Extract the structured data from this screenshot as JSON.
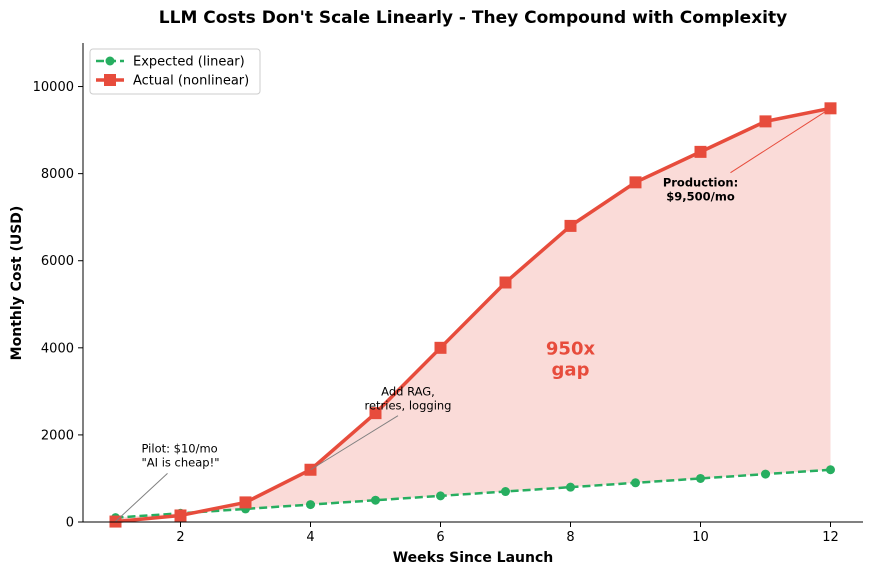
{
  "chart_data": {
    "type": "line",
    "title": "LLM Costs Don't Scale Linearly - They Compound with Complexity",
    "xlabel": "Weeks Since Launch",
    "ylabel": "Monthly Cost (USD)",
    "xlim": [
      0.5,
      12.5
    ],
    "ylim": [
      0,
      11000
    ],
    "xticks": [
      2,
      4,
      6,
      8,
      10,
      12
    ],
    "yticks": [
      0,
      2000,
      4000,
      6000,
      8000,
      10000
    ],
    "grid": false,
    "legend_position": "top-left",
    "x": [
      1,
      2,
      3,
      4,
      5,
      6,
      7,
      8,
      9,
      10,
      11,
      12
    ],
    "series": [
      {
        "name": "Expected (linear)",
        "values": [
          100,
          200,
          300,
          400,
          500,
          600,
          700,
          800,
          900,
          1000,
          1100,
          1200
        ],
        "color": "#27ae60",
        "marker": "circle",
        "line_style": "dashed"
      },
      {
        "name": "Actual (nonlinear)",
        "values": [
          10,
          150,
          450,
          1200,
          2500,
          4000,
          5500,
          6800,
          7800,
          8500,
          9200,
          9500
        ],
        "color": "#e74c3c",
        "marker": "square",
        "line_style": "solid"
      }
    ],
    "fill_between": {
      "color": "#e74c3c",
      "opacity": 0.2
    },
    "annotations": [
      {
        "lines": [
          "Pilot: $10/mo",
          "\"AI is cheap!\""
        ],
        "point": [
          1,
          10
        ],
        "text_pos": [
          1.4,
          1600
        ]
      },
      {
        "lines": [
          "Add RAG,",
          "retries, logging"
        ],
        "point": [
          4,
          1200
        ],
        "text_pos": [
          5.5,
          2900
        ]
      },
      {
        "lines": [
          "Production:",
          "$9,500/mo"
        ],
        "point": [
          12,
          9500
        ],
        "text_pos": [
          10,
          7700
        ],
        "bold": true
      },
      {
        "lines": [
          "950x",
          "gap"
        ],
        "text_pos": [
          8,
          3800
        ],
        "color": "#e74c3c",
        "kind": "gap"
      }
    ]
  }
}
